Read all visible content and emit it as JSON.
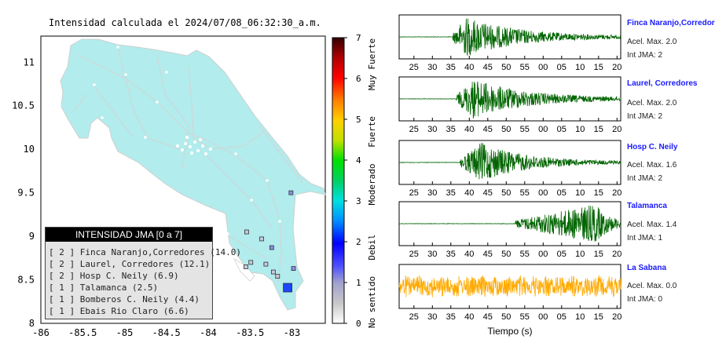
{
  "map": {
    "title": "Intensidad calculada el 2024/07/08_06:32:30_a.m.",
    "x_ticks": [
      "-86",
      "-85.5",
      "-85",
      "-84.5",
      "-84",
      "-83.5",
      "-83"
    ],
    "y_ticks": [
      "11",
      "10.5",
      "10",
      "9.5",
      "9",
      "8.5",
      "8"
    ],
    "land_color": "#b2ecec",
    "station_markers": [
      {
        "lon": -83.01,
        "lat": 9.5,
        "intensity": 2
      },
      {
        "lon": -83.54,
        "lat": 9.05,
        "intensity": 1
      },
      {
        "lon": -83.36,
        "lat": 8.97,
        "intensity": 1
      },
      {
        "lon": -83.24,
        "lat": 8.87,
        "intensity": 2
      },
      {
        "lon": -83.49,
        "lat": 8.7,
        "intensity": 1
      },
      {
        "lon": -83.31,
        "lat": 8.68,
        "intensity": 1
      },
      {
        "lon": -83.55,
        "lat": 8.65,
        "intensity": 1
      },
      {
        "lon": -83.22,
        "lat": 8.59,
        "intensity": 1
      },
      {
        "lon": -83.17,
        "lat": 8.54,
        "intensity": 1
      },
      {
        "lon": -82.98,
        "lat": 8.63,
        "intensity": 2
      },
      {
        "lon": -83.05,
        "lat": 8.41,
        "intensity": 3
      }
    ]
  },
  "colorbar": {
    "ticks": [
      "0",
      "1",
      "2",
      "3",
      "4",
      "5",
      "6",
      "7"
    ],
    "category_labels": [
      "No sentido",
      "Debil",
      "Moderado",
      "Fuerte",
      "Muy Fuerte"
    ]
  },
  "legend": {
    "title": "INTENSIDAD JMA [0 a 7]",
    "rows": [
      "[ 2 ] Finca Naranjo,Corredores (14.0)",
      "[ 2 ] Laurel, Corredores (12.1)",
      "[ 2 ] Hosp C. Neily (6.9)",
      "[ 1 ] Talamanca (2.5)",
      "[ 1 ] Bomberos C. Neily (4.4)",
      "[ 1 ] Ebais Rio Claro (6.6)"
    ]
  },
  "waveforms": {
    "x_tick_labels": [
      "25",
      "30",
      "35",
      "40",
      "45",
      "50",
      "55",
      "00",
      "05",
      "10",
      "15",
      "20"
    ],
    "xlabel": "Tiempo (s)",
    "stations": [
      {
        "name": "Finca Naranjo,Corredores",
        "acc_label": "Acel. Max. 2.0",
        "int_label": "Int JMA: 2",
        "color": "#006400",
        "onset": 35.5,
        "peak": 39,
        "amp": 0.95,
        "decay": 14
      },
      {
        "name": "Laurel, Corredores",
        "acc_label": "Acel. Max. 2.0",
        "int_label": "Int JMA: 2",
        "color": "#006400",
        "onset": 36.5,
        "peak": 41,
        "amp": 0.95,
        "decay": 14
      },
      {
        "name": "Hosp C. Neily",
        "acc_label": "Acel. Max. 1.6",
        "int_label": "Int JMA: 2",
        "color": "#006400",
        "onset": 37.5,
        "peak": 43,
        "amp": 0.95,
        "decay": 12
      },
      {
        "name": "Talamanca",
        "acc_label": "Acel. Max. 1.4",
        "int_label": "Int JMA: 1",
        "color": "#006400",
        "onset": 52.5,
        "peak": 74,
        "amp": 0.95,
        "decay": 4
      },
      {
        "name": "La Sabana",
        "acc_label": "Acel. Max. 0.0",
        "int_label": "Int JMA: 0",
        "color": "#ffaa00",
        "onset": 20,
        "peak": 0,
        "amp": 0.55,
        "decay": 0
      }
    ]
  }
}
